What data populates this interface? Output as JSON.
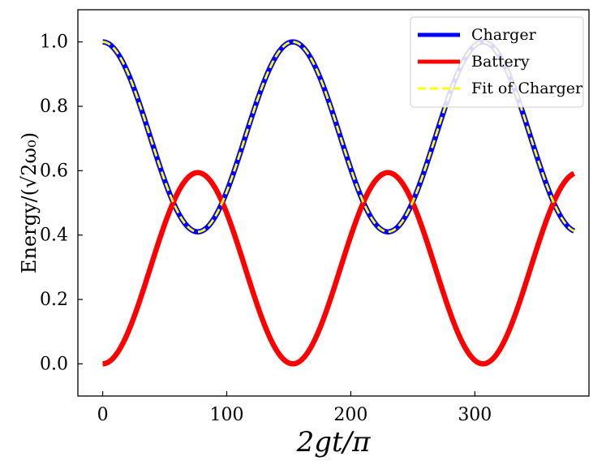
{
  "chart_data": {
    "type": "line",
    "title": "",
    "xlabel": "2gt/π",
    "ylabel": "Energy/(√2ω₀)",
    "xlim": [
      -20,
      392
    ],
    "ylim": [
      -0.1,
      1.1
    ],
    "xticks": [
      0,
      100,
      200,
      300
    ],
    "yticks": [
      0.0,
      0.2,
      0.4,
      0.6,
      0.8,
      1.0
    ],
    "xtick_labels": [
      "0",
      "100",
      "200",
      "300"
    ],
    "ytick_labels": [
      "0.0",
      "0.2",
      "0.4",
      "0.6",
      "0.8",
      "1.0"
    ],
    "grid": false,
    "legend_position": "top-right",
    "x_range": [
      0,
      380
    ],
    "period": 153.3,
    "series": [
      {
        "name": "Charger",
        "color": "#0000ff",
        "style": "solid",
        "formula": "0.705 + 0.295*cos(2πx/153.3)",
        "mean": 0.705,
        "amplitude": 0.295,
        "phase_sign": 1
      },
      {
        "name": "Battery",
        "color": "#ff0000",
        "style": "solid",
        "formula": "0.297 - 0.297*cos(2πx/153.3)",
        "mean": 0.297,
        "amplitude": 0.297,
        "phase_sign": -1
      },
      {
        "name": "Fit of Charger",
        "color": "#ffff00",
        "style": "dashed",
        "formula": "0.705 + 0.295*cos(2πx/153.3)",
        "mean": 0.705,
        "amplitude": 0.295,
        "phase_sign": 1
      }
    ]
  }
}
